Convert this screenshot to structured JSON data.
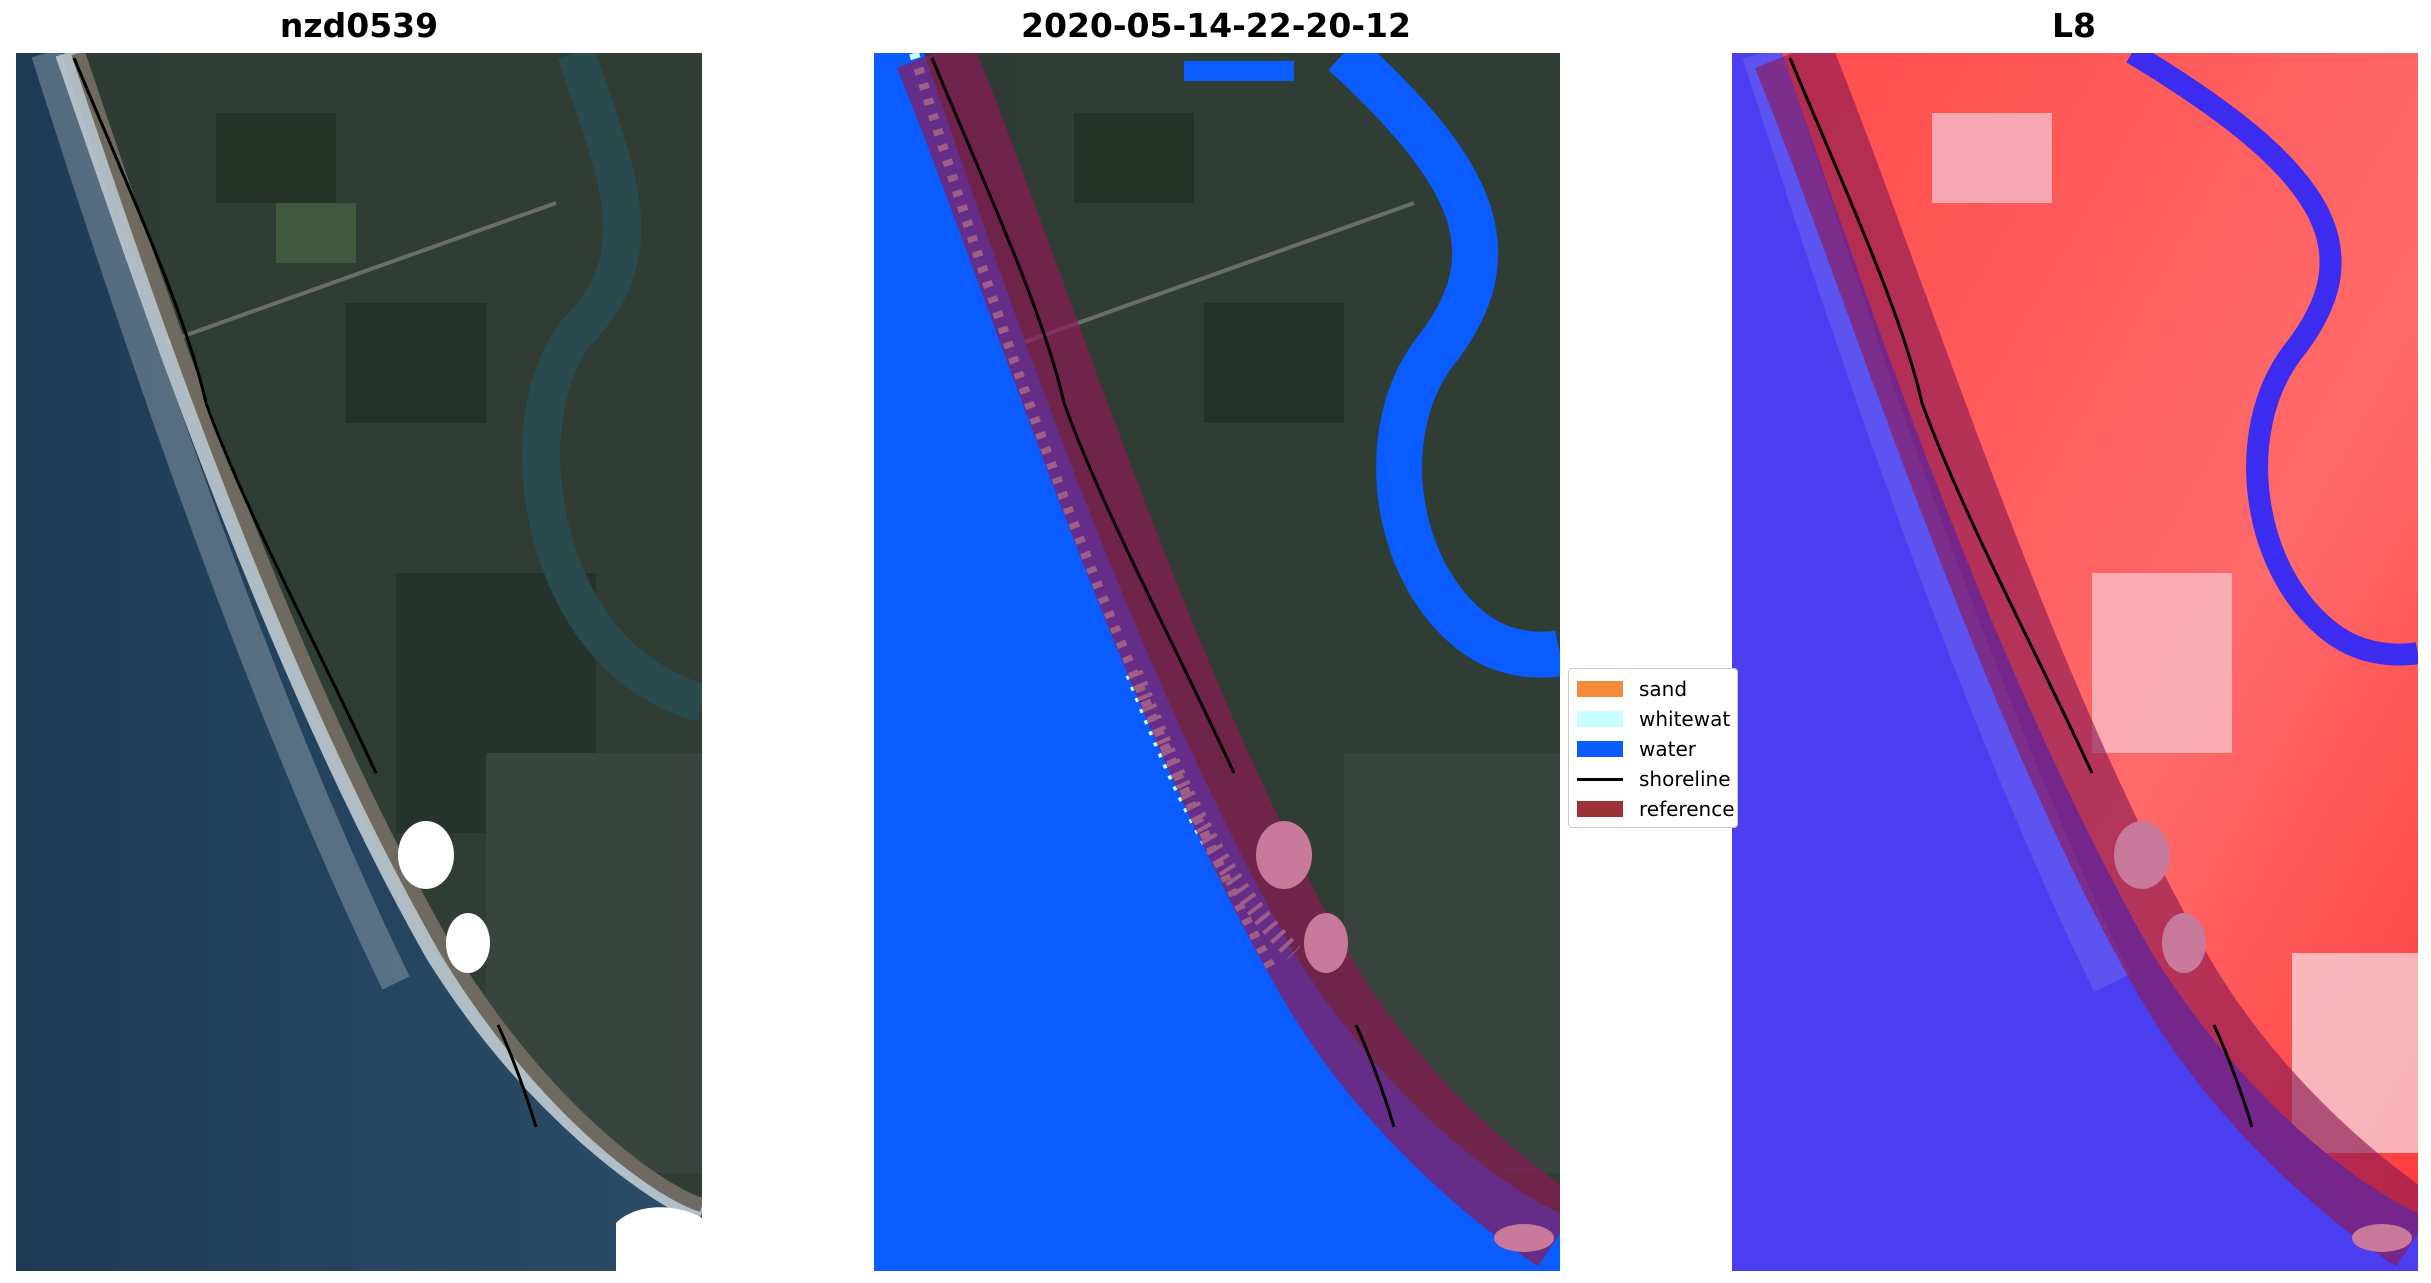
{
  "panels": [
    {
      "title": "nzd0539"
    },
    {
      "title": "2020-05-14-22-20-12"
    },
    {
      "title": "L8"
    }
  ],
  "legend": {
    "items": [
      {
        "label": "sand",
        "color": "#f58b3a",
        "kind": "patch"
      },
      {
        "label": "whitewat",
        "color": "#c9fffd",
        "kind": "patch"
      },
      {
        "label": "water",
        "color": "#0a5cff",
        "kind": "patch"
      },
      {
        "label": "shoreline",
        "color": "#000000",
        "kind": "line"
      },
      {
        "label": "reference",
        "color": "#9c3136",
        "kind": "patch"
      }
    ]
  },
  "colors": {
    "ocean": "#233f57",
    "land": "#2d3a33",
    "water_class": "#0a5cff",
    "whitewater_class": "#c9fffd",
    "reference_band": "#8c1a54",
    "index_positive": "#ff2b2b",
    "index_negative": "#3b2cf0"
  }
}
